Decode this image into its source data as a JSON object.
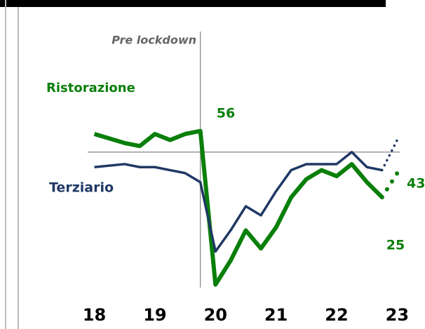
{
  "chart_data": {
    "type": "line",
    "x": [
      18.0,
      18.5,
      18.75,
      19.0,
      19.25,
      19.5,
      19.75,
      20.0,
      20.25,
      20.5,
      20.75,
      21.0,
      21.25,
      21.5,
      21.75,
      22.0,
      22.25,
      22.5,
      22.75
    ],
    "series": [
      {
        "name": "Ristorazione",
        "color": "#0a7f0a",
        "values": [
          56,
          53,
          52,
          56,
          54,
          56,
          57,
          6,
          14,
          24,
          18,
          25,
          35,
          41,
          44,
          42,
          46,
          40,
          35
        ],
        "projection_x": [
          22.75,
          23.0
        ],
        "projection_values": [
          35,
          43
        ]
      },
      {
        "name": "Terziario",
        "color": "#1f3864",
        "values": [
          45,
          46,
          45,
          45,
          44,
          43,
          40,
          17,
          24,
          32,
          29,
          37,
          44,
          46,
          46,
          46,
          50,
          45,
          44
        ],
        "projection_x": [
          22.75,
          23.0
        ],
        "projection_values": [
          44,
          54
        ]
      }
    ],
    "xlim": [
      17.6,
      23.1
    ],
    "xticks": [
      18,
      19,
      20,
      21,
      22,
      23
    ],
    "ylim": [
      5,
      90
    ],
    "reference_y": 50,
    "event_x": 19.75,
    "event_label": "Pre lockdown",
    "annotations": [
      "56",
      "43",
      "25"
    ]
  }
}
